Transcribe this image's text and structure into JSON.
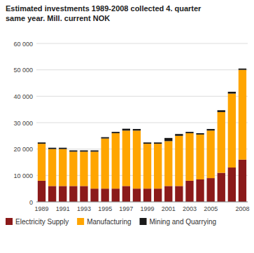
{
  "chart_data": {
    "type": "bar",
    "stacked": true,
    "grid": true,
    "legend": "bottom",
    "title": "Estimated investments 1989-2008 collected 4. quarter\nsame year. Mill. current NOK",
    "categories": [
      "1989",
      null,
      "1991",
      null,
      "1993",
      null,
      "1995",
      null,
      "1997",
      null,
      "1999",
      null,
      "2001",
      null,
      "2003",
      null,
      "2005",
      null,
      null,
      "2008"
    ],
    "series": [
      {
        "name": "Electricity Supply",
        "color": "#8B1A1A",
        "values": [
          8000,
          6000,
          6000,
          6000,
          6000,
          5000,
          5000,
          5000,
          6000,
          5000,
          5000,
          5000,
          6000,
          6000,
          8000,
          8500,
          9000,
          11000,
          13000,
          16000
        ]
      },
      {
        "name": "Manufacturing",
        "color": "#FFA500",
        "values": [
          14000,
          14000,
          14000,
          13000,
          13000,
          14000,
          19000,
          21000,
          21000,
          22000,
          17000,
          17000,
          17000,
          19000,
          18000,
          17000,
          18000,
          23000,
          28000,
          34000
        ]
      },
      {
        "name": "Mining and Quarrying",
        "color": "#1A1A1A",
        "values": [
          500,
          500,
          500,
          500,
          500,
          500,
          500,
          500,
          700,
          600,
          500,
          500,
          1200,
          700,
          500,
          500,
          600,
          700,
          700,
          500
        ]
      }
    ],
    "ylim": [
      0,
      60000
    ],
    "yticks": [
      0,
      {
        "value": 10000,
        "label": "10 000"
      },
      {
        "value": 20000,
        "label": "20 000"
      },
      {
        "value": 30000,
        "label": "30 000"
      },
      {
        "value": 40000,
        "label": "40 000"
      },
      {
        "value": 50000,
        "label": "50 000"
      },
      {
        "value": 60000,
        "label": "60 000"
      }
    ]
  }
}
